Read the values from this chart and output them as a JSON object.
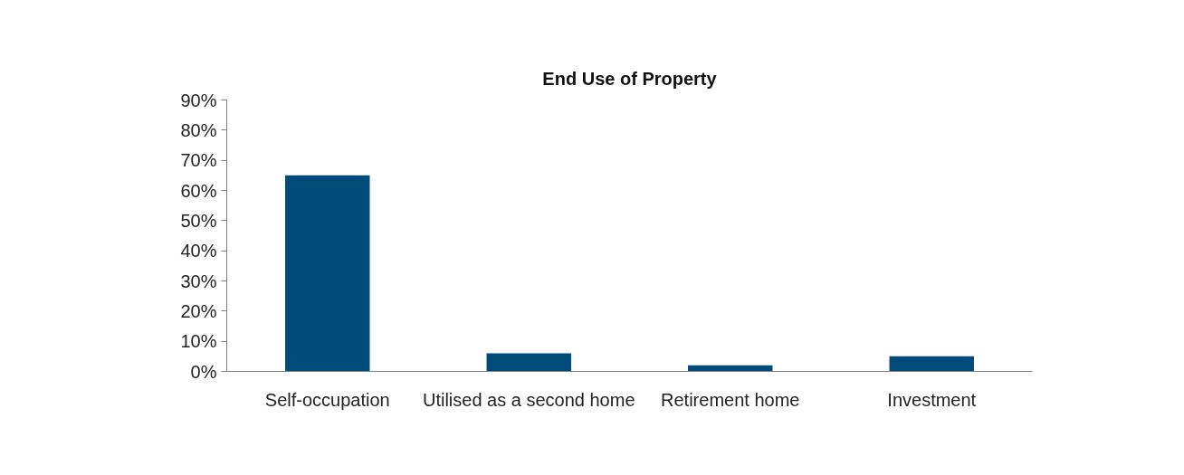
{
  "chart_data": {
    "type": "bar",
    "title": "End Use of Property",
    "categories": [
      "Self-occupation",
      "Utilised as a second home",
      "Retirement home",
      "Investment"
    ],
    "values": [
      65,
      6,
      2,
      5
    ],
    "color": "#004b78",
    "ylim": [
      0,
      90
    ],
    "yticks": [
      {
        "value": 0,
        "label": "0%"
      },
      {
        "value": 10,
        "label": "10%"
      },
      {
        "value": 20,
        "label": "20%"
      },
      {
        "value": 30,
        "label": "30%"
      },
      {
        "value": 40,
        "label": "40%"
      },
      {
        "value": 50,
        "label": "50%"
      },
      {
        "value": 60,
        "label": "60%"
      },
      {
        "value": 70,
        "label": "70%"
      },
      {
        "value": 80,
        "label": "80%"
      },
      {
        "value": 90,
        "label": "90%"
      }
    ],
    "grid": false
  }
}
